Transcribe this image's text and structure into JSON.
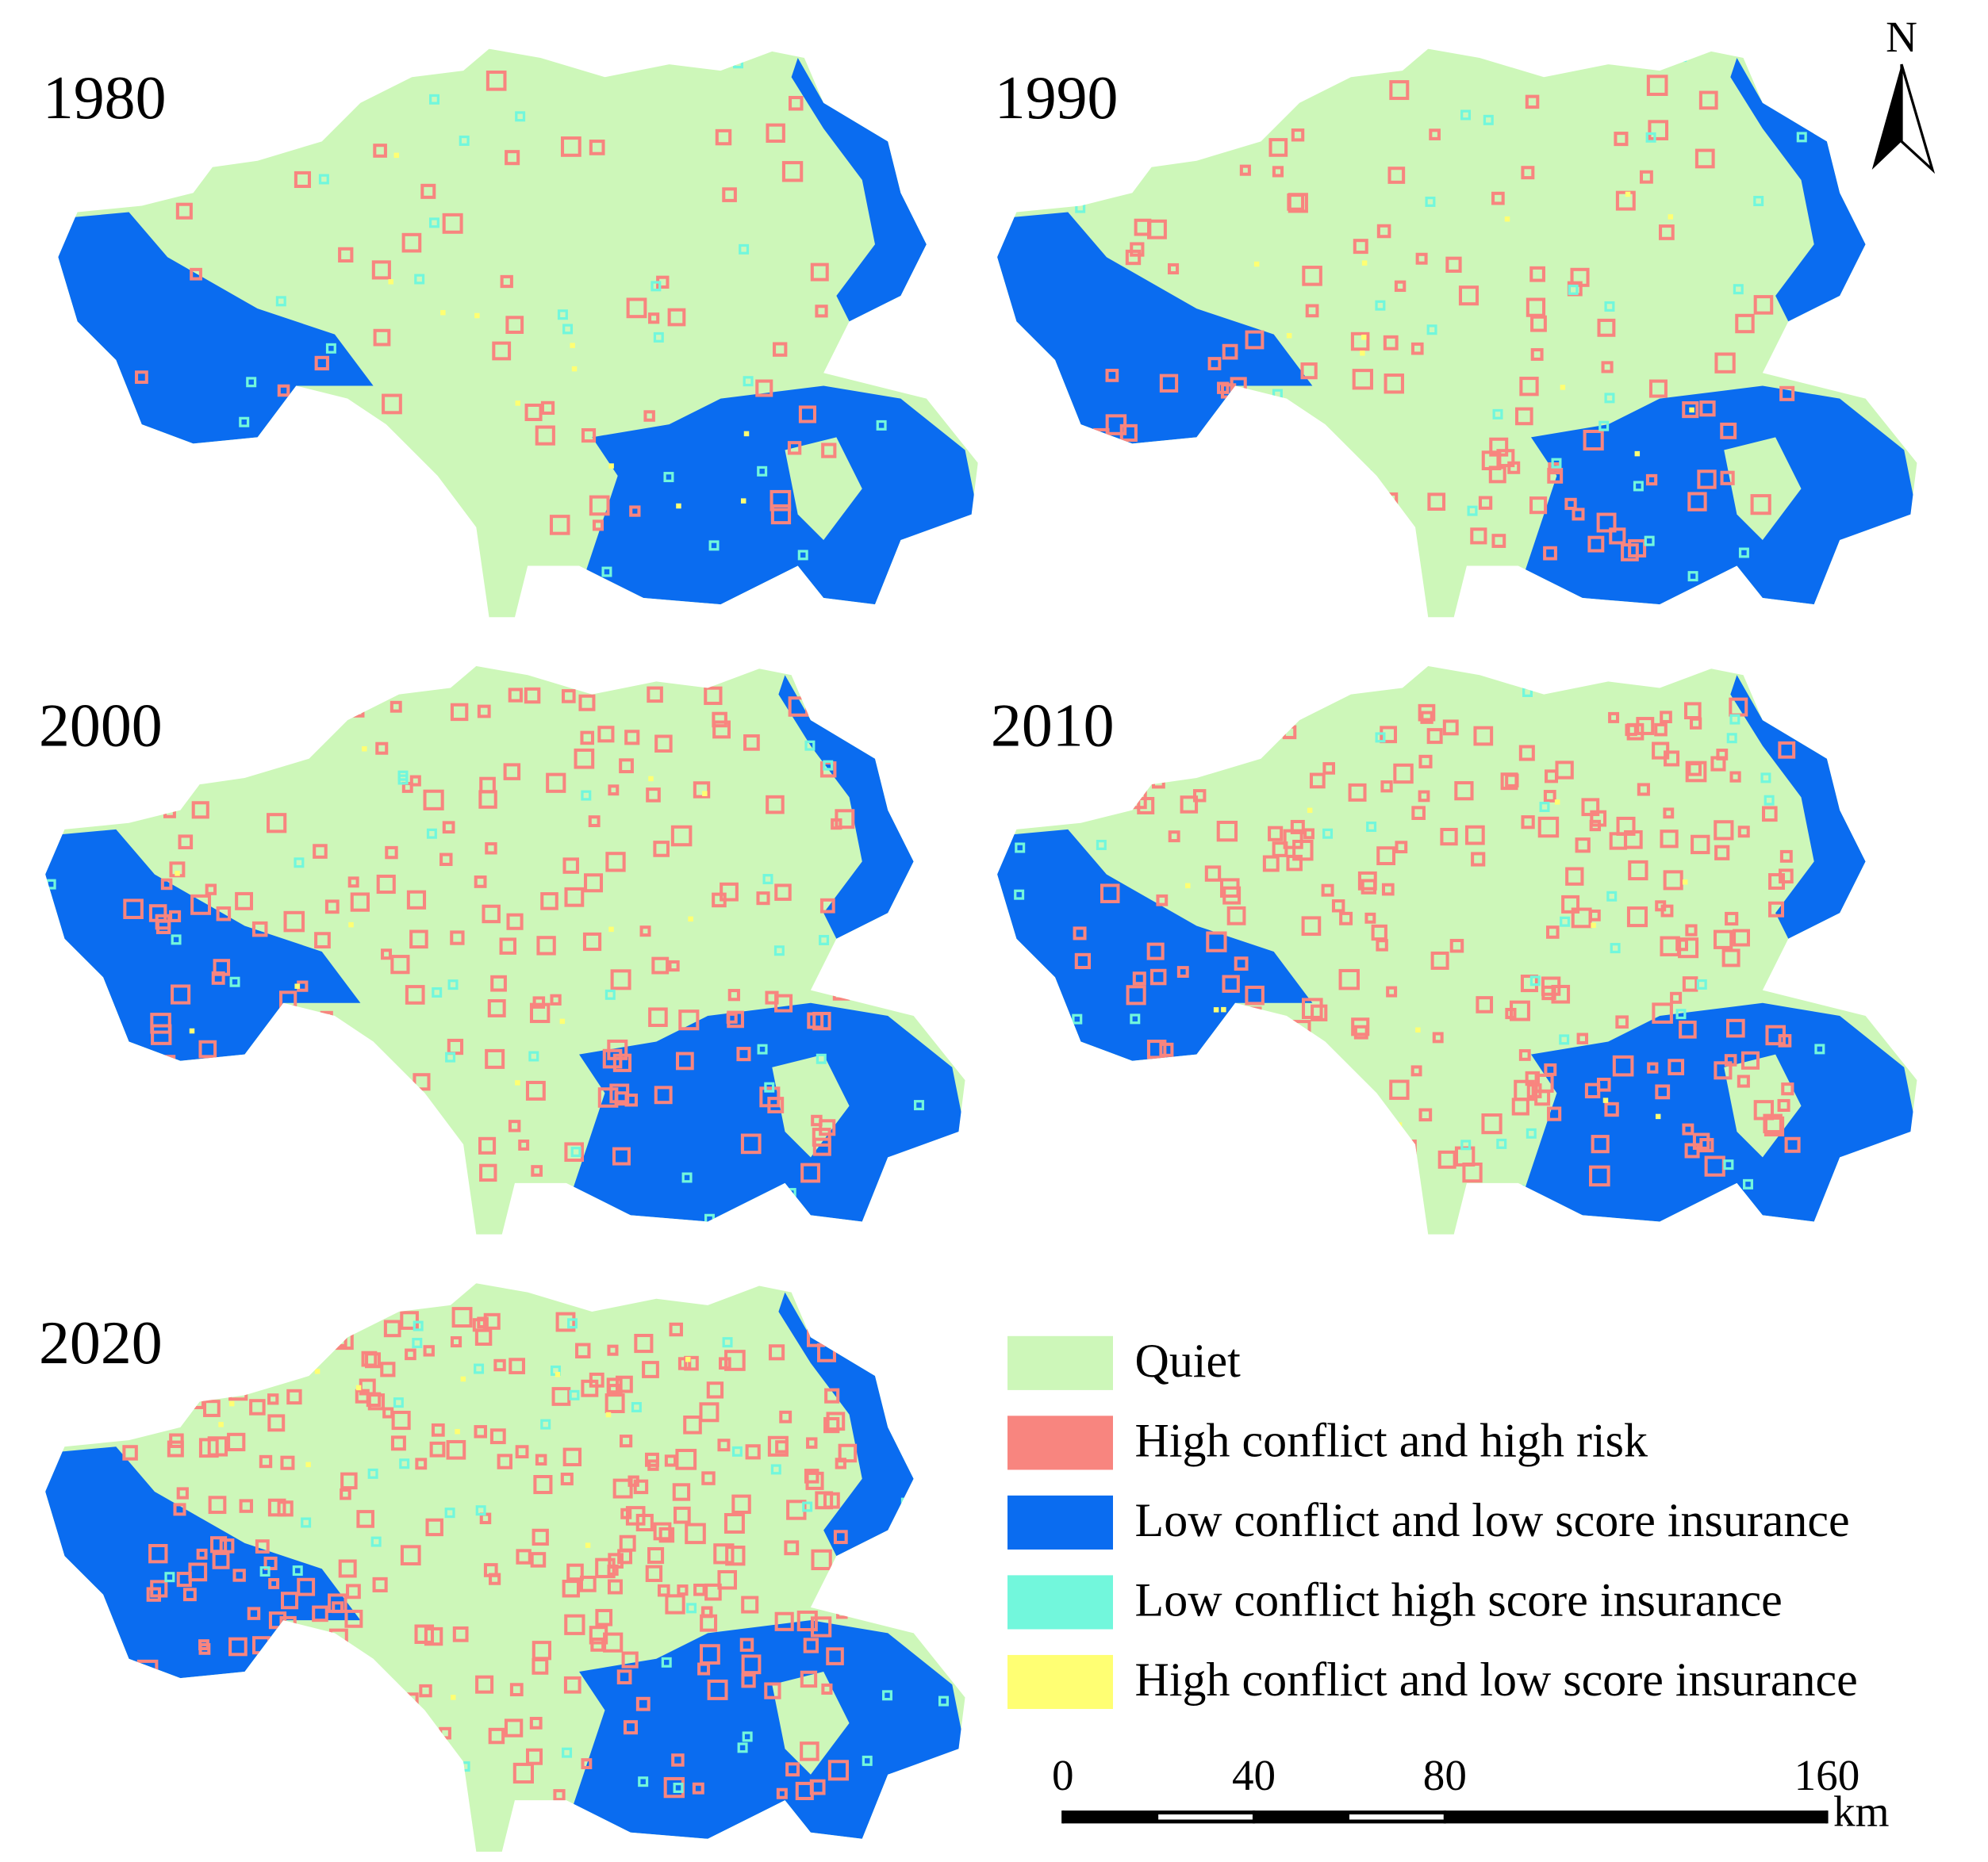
{
  "panels": [
    {
      "label": "1980"
    },
    {
      "label": "1990"
    },
    {
      "label": "2000"
    },
    {
      "label": "2010"
    },
    {
      "label": "2020"
    }
  ],
  "legend": {
    "items": [
      {
        "label": "Quiet",
        "color": "#cdf7b9"
      },
      {
        "label": "High conflict and high risk",
        "color": "#f8857f"
      },
      {
        "label": "Low conflict and low score insurance",
        "color": "#0a6cf0"
      },
      {
        "label": "Low conflict high score insurance",
        "color": "#72f7dc"
      },
      {
        "label": "High conflict and low score insurance",
        "color": "#ffff73"
      }
    ]
  },
  "north_arrow": {
    "label": "N"
  },
  "scale_bar": {
    "ticks": [
      0,
      40,
      80,
      160
    ],
    "unit": "km"
  }
}
